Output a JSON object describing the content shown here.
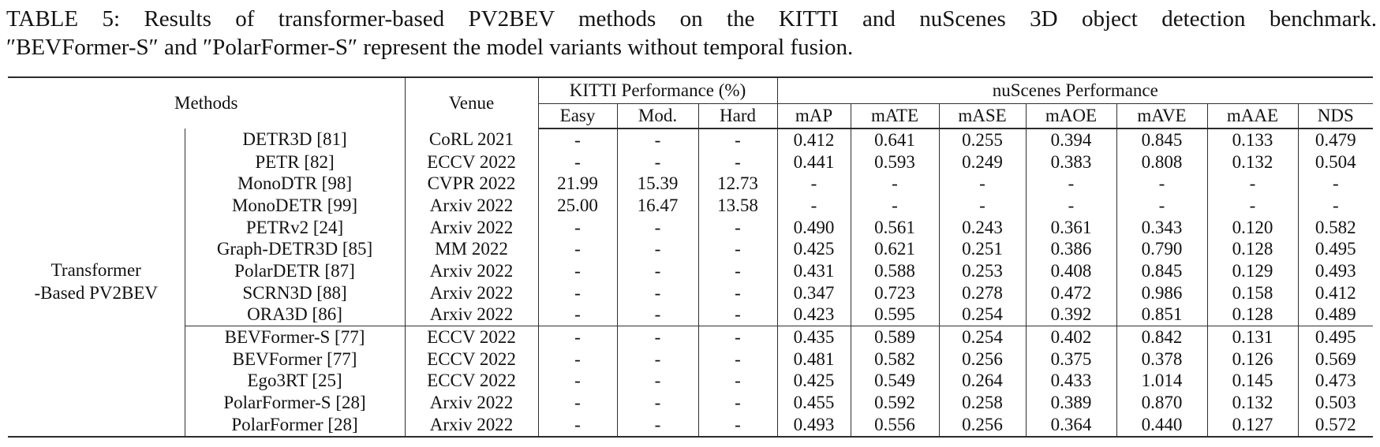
{
  "caption": {
    "line1": "TABLE 5: Results of transformer-based PV2BEV methods on the KITTI and nuScenes 3D object detection benchmark.",
    "line2": "″BEVFormer-S″ and ″PolarFormer-S″ represent the model variants without temporal fusion."
  },
  "table": {
    "header": {
      "methods": "Methods",
      "venue": "Venue",
      "kitti_group": "KITTI Performance (%)",
      "nuscenes_group": "nuScenes Performance",
      "sub": [
        "Easy",
        "Mod.",
        "Hard",
        "mAP",
        "mATE",
        "mASE",
        "mAOE",
        "mAVE",
        "mAAE",
        "NDS"
      ]
    },
    "group_label": [
      "Transformer",
      "-Based PV2BEV"
    ],
    "midrule_before_row": 9,
    "rows": [
      {
        "method": "DETR3D [81]",
        "venue": "CoRL 2021",
        "easy": "-",
        "mod": "-",
        "hard": "-",
        "map": "0.412",
        "mate": "0.641",
        "mase": "0.255",
        "maoe": "0.394",
        "mave": "0.845",
        "maae": "0.133",
        "nds": "0.479"
      },
      {
        "method": "PETR [82]",
        "venue": "ECCV 2022",
        "easy": "-",
        "mod": "-",
        "hard": "-",
        "map": "0.441",
        "mate": "0.593",
        "mase": "0.249",
        "maoe": "0.383",
        "mave": "0.808",
        "maae": "0.132",
        "nds": "0.504"
      },
      {
        "method": "MonoDTR [98]",
        "venue": "CVPR 2022",
        "easy": "21.99",
        "mod": "15.39",
        "hard": "12.73",
        "map": "-",
        "mate": "-",
        "mase": "-",
        "maoe": "-",
        "mave": "-",
        "maae": "-",
        "nds": "-"
      },
      {
        "method": "MonoDETR [99]",
        "venue": "Arxiv 2022",
        "easy": "25.00",
        "mod": "16.47",
        "hard": "13.58",
        "map": "-",
        "mate": "-",
        "mase": "-",
        "maoe": "-",
        "mave": "-",
        "maae": "-",
        "nds": "-"
      },
      {
        "method": "PETRv2 [24]",
        "venue": "Arxiv 2022",
        "easy": "-",
        "mod": "-",
        "hard": "-",
        "map": "0.490",
        "mate": "0.561",
        "mase": "0.243",
        "maoe": "0.361",
        "mave": "0.343",
        "maae": "0.120",
        "nds": "0.582"
      },
      {
        "method": "Graph-DETR3D [85]",
        "venue": "MM 2022",
        "easy": "-",
        "mod": "-",
        "hard": "-",
        "map": "0.425",
        "mate": "0.621",
        "mase": "0.251",
        "maoe": "0.386",
        "mave": "0.790",
        "maae": "0.128",
        "nds": "0.495"
      },
      {
        "method": "PolarDETR [87]",
        "venue": "Arxiv 2022",
        "easy": "-",
        "mod": "-",
        "hard": "-",
        "map": "0.431",
        "mate": "0.588",
        "mase": "0.253",
        "maoe": "0.408",
        "mave": "0.845",
        "maae": "0.129",
        "nds": "0.493"
      },
      {
        "method": "SCRN3D [88]",
        "venue": "Arxiv 2022",
        "easy": "-",
        "mod": "-",
        "hard": "-",
        "map": "0.347",
        "mate": "0.723",
        "mase": "0.278",
        "maoe": "0.472",
        "mave": "0.986",
        "maae": "0.158",
        "nds": "0.412"
      },
      {
        "method": "ORA3D [86]",
        "venue": "Arxiv 2022",
        "easy": "-",
        "mod": "-",
        "hard": "-",
        "map": "0.423",
        "mate": "0.595",
        "mase": "0.254",
        "maoe": "0.392",
        "mave": "0.851",
        "maae": "0.128",
        "nds": "0.489"
      },
      {
        "method": "BEVFormer-S [77]",
        "venue": "ECCV 2022",
        "easy": "-",
        "mod": "-",
        "hard": "-",
        "map": "0.435",
        "mate": "0.589",
        "mase": "0.254",
        "maoe": "0.402",
        "mave": "0.842",
        "maae": "0.131",
        "nds": "0.495"
      },
      {
        "method": "BEVFormer [77]",
        "venue": "ECCV 2022",
        "easy": "-",
        "mod": "-",
        "hard": "-",
        "map": "0.481",
        "mate": "0.582",
        "mase": "0.256",
        "maoe": "0.375",
        "mave": "0.378",
        "maae": "0.126",
        "nds": "0.569"
      },
      {
        "method": "Ego3RT [25]",
        "venue": "ECCV 2022",
        "easy": "-",
        "mod": "-",
        "hard": "-",
        "map": "0.425",
        "mate": "0.549",
        "mase": "0.264",
        "maoe": "0.433",
        "mave": "1.014",
        "maae": "0.145",
        "nds": "0.473"
      },
      {
        "method": "PolarFormer-S [28]",
        "venue": "Arxiv 2022",
        "easy": "-",
        "mod": "-",
        "hard": "-",
        "map": "0.455",
        "mate": "0.592",
        "mase": "0.258",
        "maoe": "0.389",
        "mave": "0.870",
        "maae": "0.132",
        "nds": "0.503"
      },
      {
        "method": "PolarFormer [28]",
        "venue": "Arxiv 2022",
        "easy": "-",
        "mod": "-",
        "hard": "-",
        "map": "0.493",
        "mate": "0.556",
        "mase": "0.256",
        "maoe": "0.364",
        "mave": "0.440",
        "maae": "0.127",
        "nds": "0.572"
      }
    ]
  }
}
